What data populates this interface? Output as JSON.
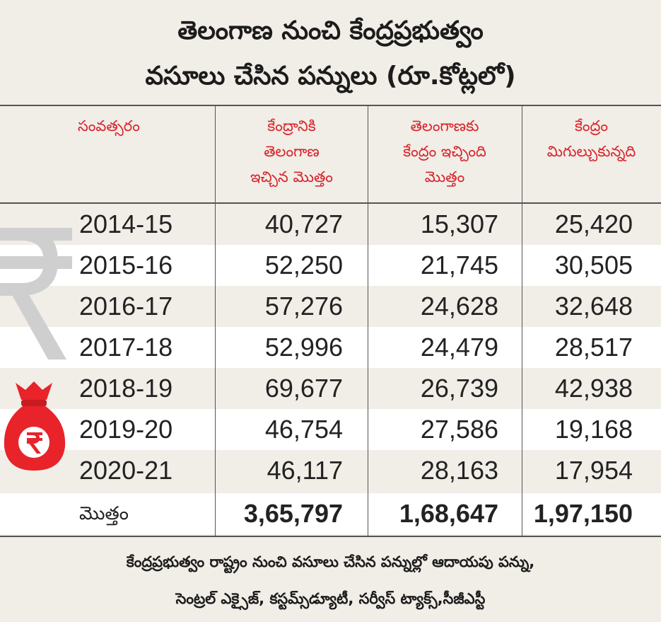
{
  "title": {
    "line1": "తెలంగాణ నుంచి కేంద్రప్రభుత్వం",
    "line2": "వసూలు చేసిన పన్నులు (రూ.కోట్లలో)"
  },
  "headers": {
    "year": [
      "సంవత్సరం"
    ],
    "col1": [
      "కేంద్రానికి",
      "తెలంగాణ",
      "ఇచ్చిన మొత్తం"
    ],
    "col2": [
      "తెలంగాణకు",
      "కేంద్రం ఇచ్చింది",
      "మొత్తం"
    ],
    "col3": [
      "కేంద్రం",
      "మిగుల్చుకున్నది"
    ]
  },
  "rows": [
    {
      "year": "2014-15",
      "v1": "40,727",
      "v2": "15,307",
      "v3": "25,420"
    },
    {
      "year": "2015-16",
      "v1": "52,250",
      "v2": "21,745",
      "v3": "30,505"
    },
    {
      "year": "2016-17",
      "v1": "57,276",
      "v2": "24,628",
      "v3": "32,648"
    },
    {
      "year": "2017-18",
      "v1": "52,996",
      "v2": "24,479",
      "v3": "28,517"
    },
    {
      "year": "2018-19",
      "v1": "69,677",
      "v2": "26,739",
      "v3": "42,938"
    },
    {
      "year": "2019-20",
      "v1": "46,754",
      "v2": "27,586",
      "v3": "19,168"
    },
    {
      "year": "2020-21",
      "v1": "46,117",
      "v2": "28,163",
      "v3": "17,954"
    }
  ],
  "total": {
    "label": "మొత్తం",
    "v1": "3,65,797",
    "v2": "1,68,647",
    "v3": "1,97,150"
  },
  "footer": {
    "line1": "కేంద్రప్రభుత్వం రాష్ట్రం నుంచి వసూలు చేసిన పన్నుల్లో ఆదాయపు పన్ను,",
    "line2": "సెంట్రల్ ఎక్సైజ్, కస్టమ్స్‌డ్యూటీ, సర్వీస్ ట్యాక్స్,సీజీఎస్టీ"
  },
  "colors": {
    "accent": "#d8232a",
    "background": "#f1ede7",
    "row_alt": "#ffffff",
    "rupee_gray": "#cfcfcf"
  },
  "icons": [
    "rupee-symbol-icon",
    "money-bag-icon"
  ]
}
